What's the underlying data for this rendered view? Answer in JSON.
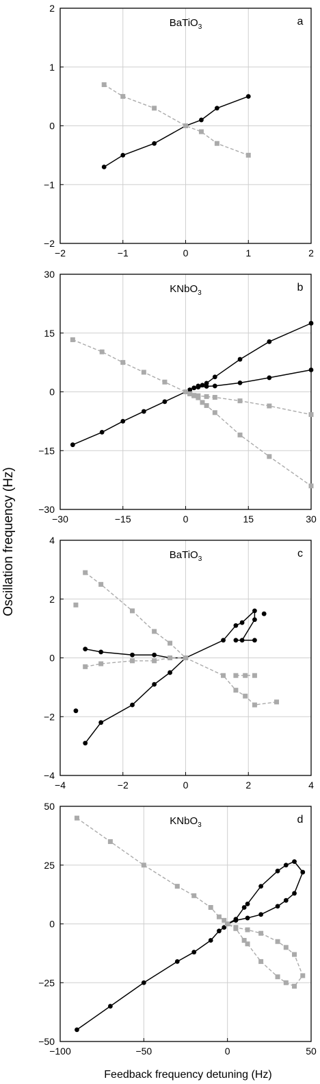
{
  "figure": {
    "ylabel": "Oscillation frequency (Hz)",
    "xlabel": "Feedback frequency detuning (Hz)"
  },
  "chart_data": [
    {
      "type": "line",
      "panel_label": "a",
      "title": "BaTiO",
      "title_sub": "3",
      "xlim": [
        -2,
        2
      ],
      "ylim": [
        -2,
        2
      ],
      "xticks": [
        -2,
        -1,
        0,
        1,
        2
      ],
      "yticks": [
        -2,
        -1,
        0,
        1,
        2
      ],
      "grid": true,
      "series": [
        {
          "color": "#000000",
          "style": "solid",
          "marker": "circle",
          "lines": [
            [
              [
                -1.3,
                -0.7
              ],
              [
                -1,
                -0.5
              ],
              [
                -0.5,
                -0.3
              ],
              [
                0,
                0
              ],
              [
                0.25,
                0.1
              ],
              [
                0.5,
                0.3
              ],
              [
                1,
                0.5
              ]
            ]
          ]
        },
        {
          "color": "#aaaaaa",
          "style": "dashed",
          "marker": "square",
          "lines": [
            [
              [
                -1.3,
                0.7
              ],
              [
                -1,
                0.5
              ],
              [
                -0.5,
                0.3
              ],
              [
                0,
                0
              ],
              [
                0.25,
                -0.1
              ],
              [
                0.5,
                -0.3
              ],
              [
                1,
                -0.5
              ]
            ]
          ]
        }
      ]
    },
    {
      "type": "line",
      "panel_label": "b",
      "title": "KNbO",
      "title_sub": "3",
      "xlim": [
        -30,
        30
      ],
      "ylim": [
        -30,
        30
      ],
      "xticks": [
        -30,
        -15,
        0,
        15,
        30
      ],
      "yticks": [
        -30,
        -15,
        0,
        15,
        30
      ],
      "grid": true,
      "series": [
        {
          "color": "#000000",
          "style": "solid",
          "marker": "circle",
          "lines": [
            [
              [
                -27,
                -13.5
              ],
              [
                -20,
                -10.3
              ],
              [
                -15,
                -7.5
              ],
              [
                -10,
                -5
              ],
              [
                -5,
                -2.5
              ],
              [
                0,
                0
              ],
              [
                1,
                0.5
              ],
              [
                2,
                1
              ],
              [
                3,
                1.5
              ],
              [
                4,
                1.7
              ],
              [
                5,
                2.2
              ],
              [
                7,
                3.8
              ],
              [
                13,
                8.3
              ],
              [
                20,
                12.8
              ],
              [
                30,
                17.5
              ]
            ],
            [
              [
                0,
                0
              ],
              [
                1,
                0.5
              ],
              [
                2,
                1
              ],
              [
                3,
                1.2
              ],
              [
                5,
                1.4
              ],
              [
                7,
                1.5
              ],
              [
                13,
                2.3
              ],
              [
                20,
                3.6
              ],
              [
                30,
                5.6
              ]
            ]
          ]
        },
        {
          "color": "#aaaaaa",
          "style": "dashed",
          "marker": "square",
          "lines": [
            [
              [
                -27,
                13.3
              ],
              [
                -20,
                10.2
              ],
              [
                -15,
                7.5
              ],
              [
                -10,
                5
              ],
              [
                -5,
                2.5
              ],
              [
                0,
                0
              ],
              [
                1,
                -0.5
              ],
              [
                2,
                -1
              ],
              [
                3,
                -1.5
              ],
              [
                4,
                -2.7
              ],
              [
                5,
                -3.5
              ],
              [
                7,
                -5.3
              ],
              [
                13,
                -11
              ],
              [
                20,
                -16.5
              ],
              [
                30,
                -24
              ]
            ],
            [
              [
                0,
                0
              ],
              [
                1,
                -0.5
              ],
              [
                2,
                -0.9
              ],
              [
                3,
                -1
              ],
              [
                5,
                -1.2
              ],
              [
                7,
                -1.4
              ],
              [
                13,
                -2.3
              ],
              [
                20,
                -3.6
              ],
              [
                30,
                -5.8
              ]
            ]
          ]
        }
      ]
    },
    {
      "type": "line",
      "panel_label": "c",
      "title": "BaTiO",
      "title_sub": "3",
      "xlim": [
        -4,
        4
      ],
      "ylim": [
        -4,
        4
      ],
      "xticks": [
        -4,
        -2,
        0,
        2,
        4
      ],
      "yticks": [
        -4,
        -2,
        0,
        2,
        4
      ],
      "grid": true,
      "series": [
        {
          "color": "#000000",
          "style": "solid",
          "marker": "circle",
          "lines": [
            [
              [
                -3.2,
                -2.9
              ],
              [
                -2.7,
                -2.2
              ],
              [
                -1.7,
                -1.6
              ],
              [
                -1.0,
                -0.9
              ],
              [
                -0.5,
                -0.5
              ],
              [
                0,
                0
              ],
              [
                1.2,
                0.6
              ],
              [
                1.6,
                1.1
              ],
              [
                1.8,
                1.2
              ],
              [
                2.2,
                1.6
              ],
              [
                2.2,
                1.3
              ],
              [
                1.8,
                0.6
              ],
              [
                1.6,
                0.6
              ],
              [
                2.2,
                0.6
              ]
            ],
            [
              [
                -3.2,
                0.3
              ],
              [
                -2.7,
                0.2
              ],
              [
                -1.7,
                0.1
              ],
              [
                -1.0,
                0.1
              ],
              [
                -0.5,
                0
              ],
              [
                0,
                0
              ]
            ]
          ],
          "points": [
            [
              -3.5,
              -1.8
            ],
            [
              2.5,
              1.5
            ]
          ]
        },
        {
          "color": "#aaaaaa",
          "style": "dashed",
          "marker": "square",
          "lines": [
            [
              [
                -3.2,
                2.9
              ],
              [
                -2.7,
                2.5
              ],
              [
                -1.7,
                1.6
              ],
              [
                -1.0,
                0.9
              ],
              [
                -0.5,
                0.5
              ],
              [
                0,
                0
              ],
              [
                1.2,
                -0.6
              ],
              [
                1.6,
                -1.1
              ],
              [
                1.9,
                -1.3
              ],
              [
                2.2,
                -1.6
              ],
              [
                2.9,
                -1.5
              ]
            ],
            [
              [
                -3.2,
                -0.3
              ],
              [
                -2.7,
                -0.2
              ],
              [
                -1.7,
                -0.1
              ],
              [
                -1.0,
                -0.1
              ],
              [
                -0.5,
                0
              ],
              [
                0,
                0
              ]
            ],
            [
              [
                1.6,
                -0.6
              ],
              [
                1.9,
                -0.6
              ],
              [
                2.2,
                -0.6
              ]
            ]
          ],
          "points": [
            [
              -3.5,
              1.8
            ]
          ]
        }
      ]
    },
    {
      "type": "line",
      "panel_label": "d",
      "title": "KNbO",
      "title_sub": "3",
      "xlim": [
        -100,
        50
      ],
      "ylim": [
        -50,
        50
      ],
      "xticks": [
        -100,
        -50,
        0,
        50
      ],
      "yticks": [
        -50,
        -25,
        0,
        25,
        50
      ],
      "grid": true,
      "series": [
        {
          "color": "#000000",
          "style": "solid",
          "marker": "circle",
          "lines": [
            [
              [
                -90,
                -45
              ],
              [
                -70,
                -35
              ],
              [
                -50,
                -25
              ],
              [
                -30,
                -16
              ],
              [
                -20,
                -12
              ],
              [
                -10,
                -7
              ],
              [
                -5,
                -3
              ],
              [
                -2,
                -1.5
              ],
              [
                0,
                0
              ],
              [
                5,
                2
              ],
              [
                10,
                7
              ],
              [
                12,
                8.5
              ],
              [
                20,
                16
              ],
              [
                30,
                22.5
              ],
              [
                35,
                25
              ],
              [
                40,
                26.5
              ],
              [
                45,
                22
              ],
              [
                40,
                13
              ],
              [
                35,
                10
              ],
              [
                30,
                7.5
              ],
              [
                20,
                4
              ],
              [
                12,
                2.5
              ],
              [
                5,
                1.5
              ],
              [
                0,
                0
              ]
            ]
          ]
        },
        {
          "color": "#aaaaaa",
          "style": "dashed",
          "marker": "square",
          "lines": [
            [
              [
                -90,
                45
              ],
              [
                -70,
                35
              ],
              [
                -50,
                25
              ],
              [
                -30,
                16
              ],
              [
                -20,
                12
              ],
              [
                -10,
                7
              ],
              [
                -5,
                3
              ],
              [
                -2,
                1.5
              ],
              [
                0,
                0
              ],
              [
                5,
                -2
              ],
              [
                10,
                -7
              ],
              [
                12,
                -8.5
              ],
              [
                20,
                -16
              ],
              [
                30,
                -22.5
              ],
              [
                35,
                -25
              ],
              [
                40,
                -26.5
              ],
              [
                45,
                -22
              ],
              [
                40,
                -13
              ],
              [
                35,
                -10
              ],
              [
                30,
                -7.5
              ],
              [
                20,
                -4
              ],
              [
                12,
                -2.5
              ],
              [
                5,
                -1.5
              ],
              [
                0,
                0
              ]
            ]
          ]
        }
      ]
    }
  ]
}
